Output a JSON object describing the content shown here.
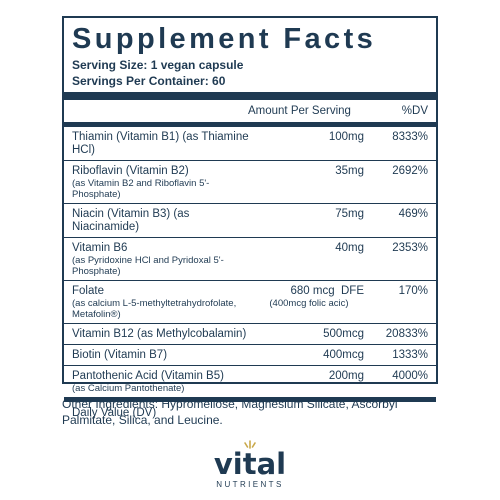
{
  "title": "Supplement Facts",
  "serving_size": "Serving Size: 1 vegan capsule",
  "servings_per_container": "Servings Per Container: 60",
  "header": {
    "amount": "Amount Per Serving",
    "dv": "%DV"
  },
  "nutrients": [
    {
      "name": "Thiamin (Vitamin B1) (as Thiamine HCl)",
      "sub": "",
      "amount": "100mg",
      "amount_sub": "",
      "dv": "8333%"
    },
    {
      "name": "Riboflavin (Vitamin B2)",
      "sub": "(as Vitamin B2 and Riboflavin 5'-Phosphate)",
      "amount": "35mg",
      "amount_sub": "",
      "dv": "2692%"
    },
    {
      "name": "Niacin (Vitamin B3) (as Niacinamide)",
      "sub": "",
      "amount": "75mg",
      "amount_sub": "",
      "dv": "469%"
    },
    {
      "name": "Vitamin B6",
      "sub": "(as Pyridoxine HCl and Pyridoxal 5'-Phosphate)",
      "amount": "40mg",
      "amount_sub": "",
      "dv": "2353%"
    },
    {
      "name": "Folate",
      "sub": "(as calcium L-5-methyltetrahydrofolate, Metafolin®)",
      "amount": "680 mcg  DFE",
      "amount_sub": "(400mcg folic acic)",
      "dv": "170%"
    },
    {
      "name": "Vitamin B12 (as Methylcobalamin)",
      "sub": "",
      "amount": "500mcg",
      "amount_sub": "",
      "dv": "20833%"
    },
    {
      "name": "Biotin (Vitamin B7)",
      "sub": "",
      "amount": "400mcg",
      "amount_sub": "",
      "dv": "1333%"
    },
    {
      "name": "Pantothenic Acid (Vitamin B5)",
      "sub": "(as Calcium Pantothenate)",
      "amount": "200mg",
      "amount_sub": "",
      "dv": "4000%"
    }
  ],
  "dv_note": "Daily Value (DV)",
  "other_ingredients": "Other Ingredients: Hypromellose, Magnesium Silicate, Ascorbyl Palmitate, Silica, and Leucine.",
  "logo": {
    "word": "vital",
    "sub": "NUTRIENTS",
    "accent": "#c9a84a",
    "ink": "#1f3a52"
  }
}
